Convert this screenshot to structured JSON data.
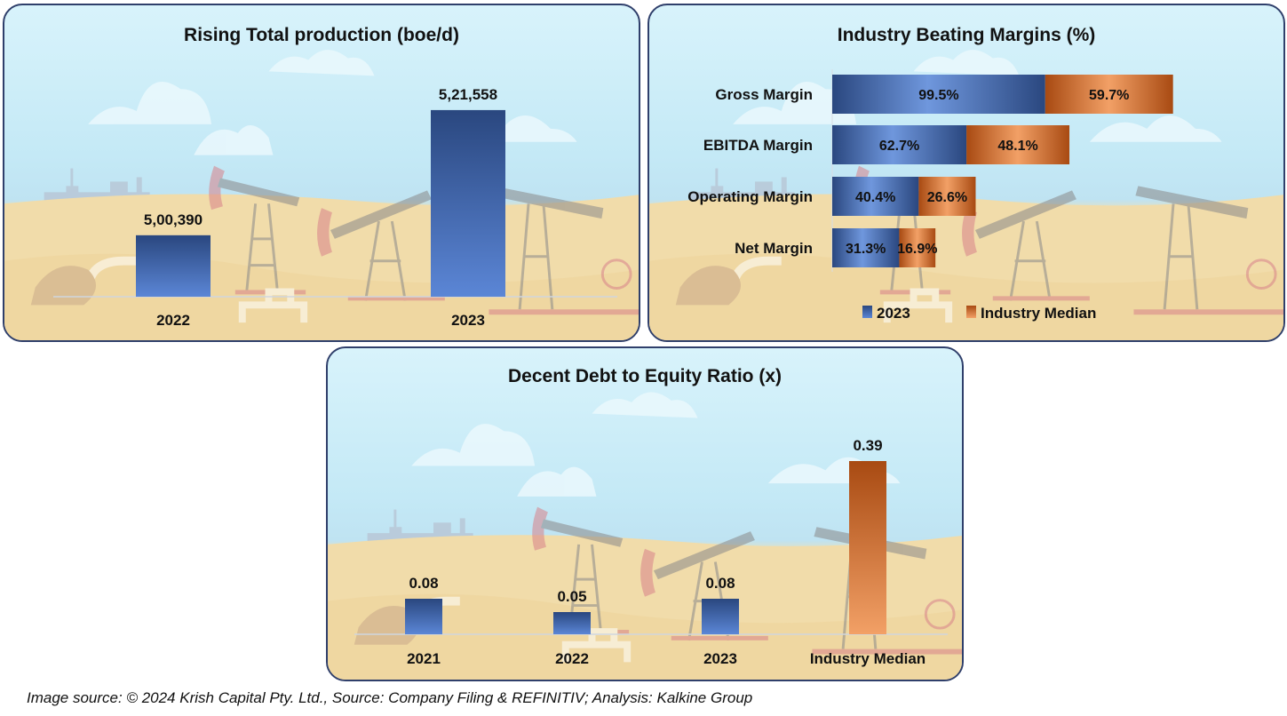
{
  "footer": "Image source: © 2024 Krish Capital Pty. Ltd., Source: Company Filing & REFINITIV; Analysis: Kalkine Group",
  "colors": {
    "blue_dark": "#2a477f",
    "blue_light": "#5b86d6",
    "orange_dark": "#a84a12",
    "orange_light": "#f2a066",
    "border": "#2f3f6b"
  },
  "chart_data": [
    {
      "type": "bar",
      "title": "Rising Total production (boe/d)",
      "categories": [
        "2022",
        "2023"
      ],
      "values": [
        500390,
        521558
      ],
      "value_labels": [
        "5,00,390",
        "5,21,558"
      ],
      "xlabel": "",
      "ylabel": "",
      "ylim": [
        490000,
        525000
      ],
      "grid": false
    },
    {
      "type": "bar",
      "orientation": "horizontal",
      "stacked": true,
      "title": "Industry Beating Margins (%)",
      "categories": [
        "Gross Margin",
        "EBITDA Margin",
        "Operating Margin",
        "Net Margin"
      ],
      "series": [
        {
          "name": "2023",
          "values": [
            99.5,
            62.7,
            40.4,
            31.3
          ],
          "labels": [
            "99.5%",
            "62.7%",
            "40.4%",
            "31.3%"
          ]
        },
        {
          "name": "Industry Median",
          "values": [
            59.7,
            48.1,
            26.6,
            16.9
          ],
          "labels": [
            "59.7%",
            "48.1%",
            "26.6%",
            "16.9%"
          ]
        }
      ],
      "legend": [
        "2023",
        "Industry Median"
      ],
      "legend_position": "bottom",
      "grid": false
    },
    {
      "type": "bar",
      "title": "Decent Debt to Equity Ratio (x)",
      "categories": [
        "2021",
        "2022",
        "2023",
        "Industry Median"
      ],
      "values": [
        0.08,
        0.05,
        0.08,
        0.39
      ],
      "value_labels": [
        "0.08",
        "0.05",
        "0.08",
        "0.39"
      ],
      "highlight": [
        false,
        false,
        false,
        true
      ],
      "ylim": [
        0,
        0.43
      ],
      "grid": false
    }
  ]
}
